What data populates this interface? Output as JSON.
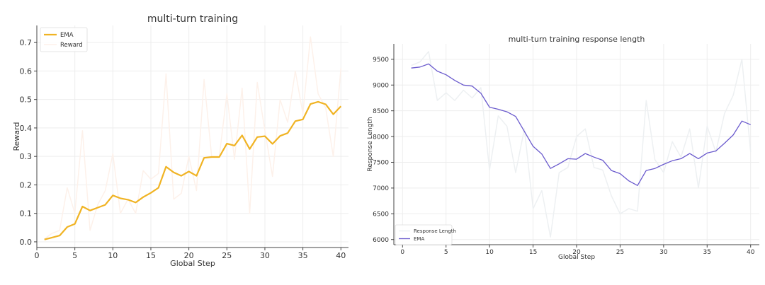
{
  "chart_data": [
    {
      "type": "line",
      "title": "multi-turn training",
      "xlabel": "Global Step",
      "ylabel": "Reward",
      "xlim": [
        0,
        41
      ],
      "ylim": [
        -0.02,
        0.76
      ],
      "xticks": [
        0,
        5,
        10,
        15,
        20,
        25,
        30,
        35,
        40
      ],
      "yticks": [
        0.0,
        0.1,
        0.2,
        0.3,
        0.4,
        0.5,
        0.6,
        0.7
      ],
      "grid": true,
      "legend_position": "top-left",
      "x": [
        1,
        2,
        3,
        4,
        5,
        6,
        7,
        8,
        9,
        10,
        11,
        12,
        13,
        14,
        15,
        16,
        17,
        18,
        19,
        20,
        21,
        22,
        23,
        24,
        25,
        26,
        27,
        28,
        29,
        30,
        31,
        32,
        33,
        34,
        35,
        36,
        37,
        38,
        39,
        40
      ],
      "series": [
        {
          "name": "EMA",
          "color": "#f0b323",
          "values": [
            0.008,
            0.015,
            0.022,
            0.052,
            0.063,
            0.124,
            0.11,
            0.12,
            0.13,
            0.163,
            0.153,
            0.148,
            0.138,
            0.157,
            0.172,
            0.19,
            0.264,
            0.244,
            0.232,
            0.247,
            0.232,
            0.295,
            0.298,
            0.298,
            0.345,
            0.338,
            0.374,
            0.326,
            0.368,
            0.371,
            0.344,
            0.372,
            0.382,
            0.424,
            0.43,
            0.484,
            0.492,
            0.483,
            0.448,
            0.476
          ]
        },
        {
          "name": "Reward",
          "color": "#fdf1ea",
          "values": [
            0.01,
            0.03,
            0.04,
            0.19,
            0.1,
            0.39,
            0.04,
            0.13,
            0.18,
            0.31,
            0.1,
            0.15,
            0.1,
            0.25,
            0.22,
            0.24,
            0.59,
            0.15,
            0.17,
            0.3,
            0.18,
            0.57,
            0.3,
            0.3,
            0.52,
            0.29,
            0.54,
            0.1,
            0.56,
            0.39,
            0.23,
            0.5,
            0.42,
            0.6,
            0.45,
            0.72,
            0.52,
            0.47,
            0.3,
            0.61
          ]
        }
      ]
    },
    {
      "type": "line",
      "title": "multi-turn training response length",
      "xlabel": "Global Step",
      "ylabel": "Response Length",
      "xlim": [
        -1,
        41
      ],
      "ylim": [
        5900,
        9800
      ],
      "xticks": [
        0,
        5,
        10,
        15,
        20,
        25,
        30,
        35,
        40
      ],
      "yticks": [
        6000,
        6500,
        7000,
        7500,
        8000,
        8500,
        9000,
        9500
      ],
      "grid": true,
      "legend_position": "bottom-left",
      "x": [
        1,
        2,
        3,
        4,
        5,
        6,
        7,
        8,
        9,
        10,
        11,
        12,
        13,
        14,
        15,
        16,
        17,
        18,
        19,
        20,
        21,
        22,
        23,
        24,
        25,
        26,
        27,
        28,
        29,
        30,
        31,
        32,
        33,
        34,
        35,
        36,
        37,
        38,
        39,
        40
      ],
      "series": [
        {
          "name": "Response Length",
          "color": "#edf0f2",
          "values": [
            9380,
            9450,
            9650,
            8700,
            8850,
            8700,
            8900,
            8750,
            8950,
            7350,
            8400,
            8200,
            7300,
            8150,
            6600,
            6950,
            6050,
            7300,
            7400,
            8000,
            8150,
            7400,
            7350,
            6850,
            6500,
            6600,
            6550,
            8700,
            7550,
            7300,
            7900,
            7600,
            8150,
            7000,
            8200,
            7700,
            8450,
            8800,
            9500,
            7700
          ]
        },
        {
          "name": "EMA",
          "color": "#6a5acd",
          "values": [
            9330,
            9350,
            9410,
            9270,
            9200,
            9090,
            9000,
            8980,
            8840,
            8570,
            8530,
            8480,
            8390,
            8100,
            7810,
            7660,
            7380,
            7470,
            7570,
            7560,
            7670,
            7600,
            7540,
            7340,
            7280,
            7140,
            7050,
            7340,
            7380,
            7460,
            7530,
            7570,
            7670,
            7570,
            7680,
            7720,
            7870,
            8030,
            8300,
            8230
          ]
        }
      ]
    }
  ]
}
